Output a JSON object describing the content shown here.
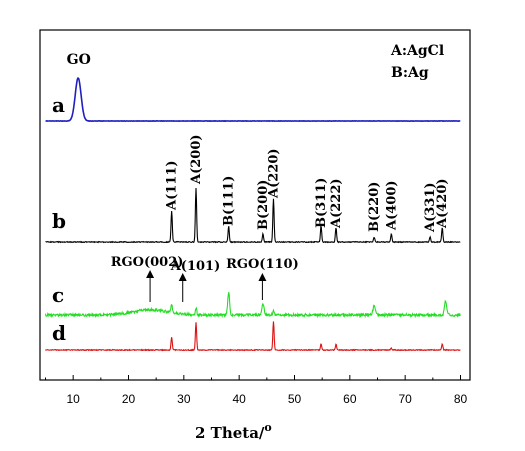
{
  "chart_data": {
    "type": "line",
    "xlabel": "2 Theta/",
    "xlabel_sup": "o",
    "xlim": [
      5,
      80
    ],
    "xticks": [
      10,
      20,
      30,
      40,
      50,
      60,
      70,
      80
    ],
    "legend": {
      "position": "top-right",
      "lines": [
        "A:AgCl",
        "B:Ag"
      ]
    },
    "series": [
      {
        "name": "a",
        "color": "#1f1fbf",
        "peaks": [
          {
            "x": 10.9,
            "h": 1.0,
            "w": 0.75
          }
        ]
      },
      {
        "name": "b",
        "color": "#000000",
        "peaks": [
          {
            "x": 27.8,
            "h": 0.58,
            "w": 0.16
          },
          {
            "x": 32.2,
            "h": 1.0,
            "w": 0.16
          },
          {
            "x": 38.1,
            "h": 0.29,
            "w": 0.16
          },
          {
            "x": 44.3,
            "h": 0.15,
            "w": 0.16
          },
          {
            "x": 46.2,
            "h": 0.8,
            "w": 0.16
          },
          {
            "x": 54.8,
            "h": 0.3,
            "w": 0.16
          },
          {
            "x": 57.5,
            "h": 0.27,
            "w": 0.16
          },
          {
            "x": 64.4,
            "h": 0.09,
            "w": 0.16
          },
          {
            "x": 67.5,
            "h": 0.15,
            "w": 0.16
          },
          {
            "x": 74.5,
            "h": 0.09,
            "w": 0.16
          },
          {
            "x": 76.7,
            "h": 0.27,
            "w": 0.16
          }
        ]
      },
      {
        "name": "c",
        "color": "#22dd22",
        "peaks": [
          {
            "x": 24.0,
            "h": 0.2,
            "w": 4.5
          },
          {
            "x": 27.8,
            "h": 0.28,
            "w": 0.18
          },
          {
            "x": 32.2,
            "h": 0.25,
            "w": 0.18
          },
          {
            "x": 38.1,
            "h": 0.85,
            "w": 0.25
          },
          {
            "x": 44.3,
            "h": 0.45,
            "w": 0.25
          },
          {
            "x": 46.2,
            "h": 0.2,
            "w": 0.2
          },
          {
            "x": 64.4,
            "h": 0.35,
            "w": 0.3
          },
          {
            "x": 77.3,
            "h": 0.55,
            "w": 0.28
          }
        ]
      },
      {
        "name": "d",
        "color": "#dd1111",
        "peaks": [
          {
            "x": 27.8,
            "h": 0.45,
            "w": 0.16
          },
          {
            "x": 32.2,
            "h": 0.95,
            "w": 0.16
          },
          {
            "x": 46.2,
            "h": 1.0,
            "w": 0.16
          },
          {
            "x": 54.8,
            "h": 0.22,
            "w": 0.16
          },
          {
            "x": 57.5,
            "h": 0.2,
            "w": 0.16
          },
          {
            "x": 67.5,
            "h": 0.06,
            "w": 0.16
          },
          {
            "x": 76.7,
            "h": 0.22,
            "w": 0.16
          }
        ]
      }
    ],
    "curve_labels": [
      "a",
      "b",
      "c",
      "d"
    ],
    "annotations": {
      "peak_label_go": {
        "text": "GO",
        "x": 11
      },
      "peak_labels_b": [
        {
          "text": "A(111)",
          "x": 27.8
        },
        {
          "text": "A(200)",
          "x": 32.2
        },
        {
          "text": "B(111)",
          "x": 38.1
        },
        {
          "text": "B(200)",
          "x": 44.3
        },
        {
          "text": "A(220)",
          "x": 46.2
        },
        {
          "text": "B(311)",
          "x": 54.8
        },
        {
          "text": "A(222)",
          "x": 57.5
        },
        {
          "text": "B(220)",
          "x": 64.4
        },
        {
          "text": "A(400)",
          "x": 67.5
        },
        {
          "text": "A(331)",
          "x": 74.5
        },
        {
          "text": "A(420)",
          "x": 76.7
        }
      ],
      "arrows_c": [
        {
          "text": "RGO(002)",
          "x": 23.9
        },
        {
          "text": "A(101)",
          "x": 29.8
        },
        {
          "text": "RGO(110)",
          "x": 44.2
        }
      ]
    }
  }
}
